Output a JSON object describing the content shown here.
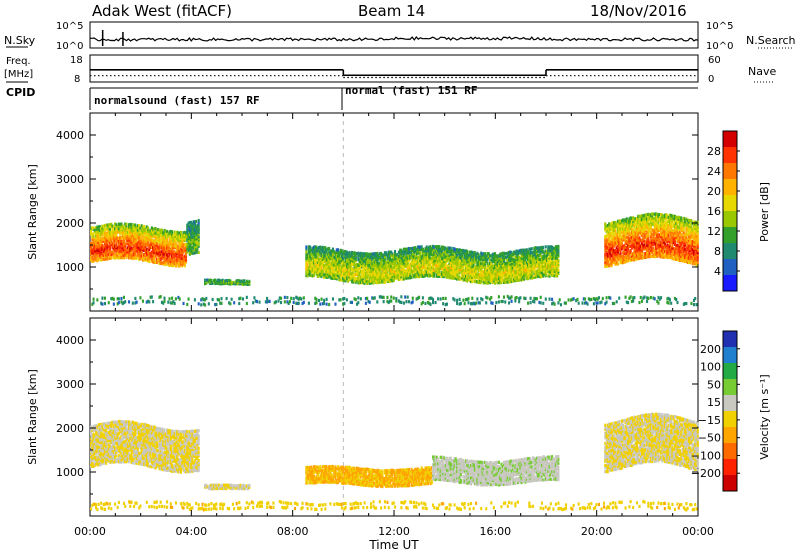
{
  "header": {
    "radar": "Adak West (fitACF)",
    "beam": "Beam 14",
    "date": "18/Nov/2016"
  },
  "sky_panel": {
    "left_label": "N.Sky",
    "right_label": "N.Search",
    "left_ticks": [
      "10^5",
      "10^0"
    ],
    "right_ticks": [
      "10^5",
      "10^0"
    ]
  },
  "freq_panel": {
    "left_label_1": "Freq.",
    "left_label_2": "[MHz]",
    "left_ticks": [
      "18",
      "8"
    ],
    "right_label": "Nave",
    "right_ticks": [
      "60",
      "0"
    ],
    "cpid_label": "CPID"
  },
  "cpid_segments": [
    {
      "label": "normalsound (fast) 157 RF",
      "start_hour": 0,
      "end_hour": 10
    },
    {
      "label": "normal (fast) 151 RF",
      "start_hour": 10,
      "end_hour": 24
    }
  ],
  "power_colorbar": {
    "label": "Power [dB]",
    "ticks": [
      "28",
      "24",
      "20",
      "16",
      "12",
      "8",
      "4"
    ],
    "colors": [
      "#d40000",
      "#ff3300",
      "#ff7700",
      "#ffb300",
      "#e6d800",
      "#9ac800",
      "#33a02c",
      "#1f8a70",
      "#2060c0",
      "#1a1aff"
    ]
  },
  "velocity_colorbar": {
    "label": "Velocity [m s⁻¹]",
    "ticks": [
      "200",
      "100",
      "50",
      "15",
      "−15",
      "−50",
      "−100",
      "−200"
    ],
    "colors": [
      "#2030b0",
      "#2080d0",
      "#22aa44",
      "#77cc33",
      "#c8c8c0",
      "#f0d000",
      "#ffa500",
      "#ff6a00",
      "#ff2200",
      "#cc0000"
    ]
  },
  "chart_data": [
    {
      "type": "heatmap",
      "title": "Power",
      "xlabel": "Time UT",
      "ylabel": "Slant Range [km]",
      "xlim": [
        0,
        24
      ],
      "ylim": [
        0,
        4500
      ],
      "x_ticks": [
        "00:00",
        "04:00",
        "08:00",
        "12:00",
        "16:00",
        "20:00",
        "00:00"
      ],
      "y_ticks": [
        "1000",
        "2000",
        "3000",
        "4000"
      ],
      "regions": [
        {
          "start_hour": 0.0,
          "end_hour": 3.8,
          "range_min_km": 1100,
          "range_max_km": 1900,
          "mean_power_db": 14,
          "peak_power_db": 28
        },
        {
          "start_hour": 3.8,
          "end_hour": 4.3,
          "range_min_km": 1300,
          "range_max_km": 2050,
          "mean_power_db": 8
        },
        {
          "start_hour": 4.5,
          "end_hour": 6.3,
          "range_min_km": 600,
          "range_max_km": 700,
          "mean_power_db": 8
        },
        {
          "start_hour": 8.5,
          "end_hour": 18.5,
          "range_min_km": 700,
          "range_max_km": 1400,
          "mean_power_db": 10,
          "peak_power_db": 18
        },
        {
          "start_hour": 20.3,
          "end_hour": 24.0,
          "range_min_km": 1100,
          "range_max_km": 2100,
          "mean_power_db": 14,
          "peak_power_db": 28
        },
        {
          "start_hour": 0.0,
          "end_hour": 24.0,
          "range_min_km": 150,
          "range_max_km": 350,
          "mean_power_db": 6
        }
      ]
    },
    {
      "type": "heatmap",
      "title": "Velocity",
      "xlabel": "Time UT",
      "ylabel": "Slant Range [km]",
      "xlim": [
        0,
        24
      ],
      "ylim": [
        0,
        4500
      ],
      "x_ticks": [
        "00:00",
        "04:00",
        "08:00",
        "12:00",
        "16:00",
        "20:00",
        "00:00"
      ],
      "y_ticks": [
        "1000",
        "2000",
        "3000",
        "4000"
      ],
      "regions": [
        {
          "start_hour": 0.0,
          "end_hour": 4.3,
          "range_min_km": 1100,
          "range_max_km": 2050,
          "mean_velocity": 0
        },
        {
          "start_hour": 4.5,
          "end_hour": 6.3,
          "range_min_km": 600,
          "range_max_km": 700,
          "mean_velocity": 0
        },
        {
          "start_hour": 8.5,
          "end_hour": 13.5,
          "range_min_km": 700,
          "range_max_km": 1100,
          "mean_velocity": -60
        },
        {
          "start_hour": 13.5,
          "end_hour": 18.5,
          "range_min_km": 750,
          "range_max_km": 1300,
          "mean_velocity": 40
        },
        {
          "start_hour": 20.3,
          "end_hour": 24.0,
          "range_min_km": 1100,
          "range_max_km": 2200,
          "mean_velocity": 0
        },
        {
          "start_hour": 0.0,
          "end_hour": 24.0,
          "range_min_km": 150,
          "range_max_km": 350,
          "mean_velocity": -30
        }
      ]
    }
  ],
  "frequency_series": {
    "units": "MHz",
    "segments": [
      {
        "start_hour": 0,
        "end_hour": 10,
        "value": 12.5
      },
      {
        "start_hour": 10,
        "end_hour": 18,
        "value": 10.5
      },
      {
        "start_hour": 18,
        "end_hour": 24,
        "value": 12.5
      }
    ]
  },
  "nave_series": {
    "segments": [
      {
        "start_hour": 0,
        "end_hour": 10,
        "value": 14
      },
      {
        "start_hour": 10,
        "end_hour": 18,
        "value": 10
      },
      {
        "start_hour": 18,
        "end_hour": 24,
        "value": 14
      }
    ]
  }
}
